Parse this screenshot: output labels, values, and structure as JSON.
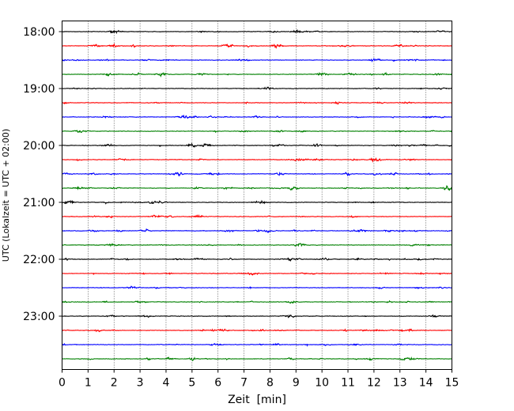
{
  "chart_data": {
    "type": "line",
    "title": "",
    "xlabel": "Zeit  [min]",
    "ylabel": "UTC (Lokalzeit = UTC + 02:00)",
    "xlim": [
      0,
      15
    ],
    "x_ticks": [
      0,
      1,
      2,
      3,
      4,
      5,
      6,
      7,
      8,
      9,
      10,
      11,
      12,
      13,
      14,
      15
    ],
    "y_ticks": [
      "18:00",
      "19:00",
      "20:00",
      "21:00",
      "22:00",
      "23:00"
    ],
    "trace_start_time": "18:00",
    "trace_interval_minutes": 15,
    "trace_count": 24,
    "colors": [
      "#000000",
      "#ff0000",
      "#0000ff",
      "#008000"
    ],
    "grid": "vertical dotted",
    "legend": "none"
  }
}
